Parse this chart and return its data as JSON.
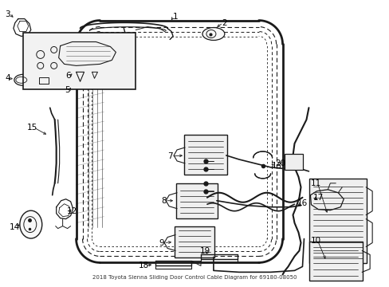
{
  "bg_color": "#ffffff",
  "line_color": "#1a1a1a",
  "label_color": "#000000",
  "title": "Diagram 69180-08050",
  "font_size_label": 7.5
}
